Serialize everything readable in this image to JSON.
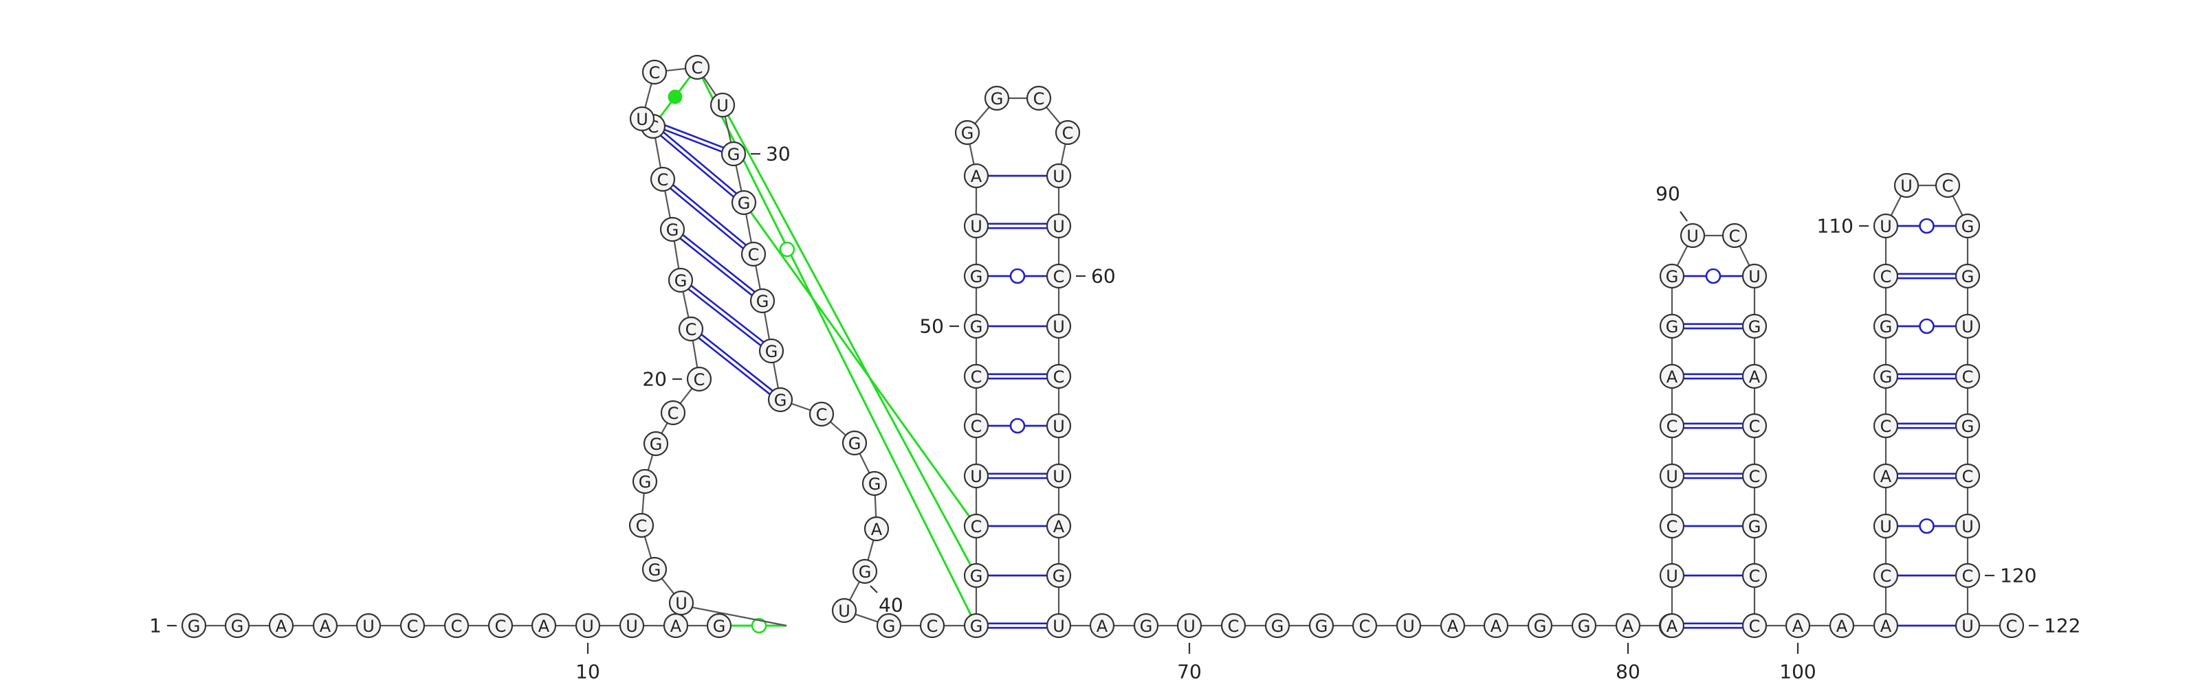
{
  "diagram": {
    "type": "rna-secondary-structure",
    "sequence_length": 122,
    "colors": {
      "backbone": "#555555",
      "canonical_pair": "#2020c8",
      "gu_pair": "#2020c8",
      "pseudoknot": "#22dd22"
    },
    "bases": [
      "G",
      "G",
      "A",
      "A",
      "U",
      "C",
      "C",
      "C",
      "A",
      "U",
      "U",
      "A",
      "G",
      "U",
      "G",
      "C",
      "G",
      "G",
      "C",
      "C",
      "C",
      "G",
      "G",
      "C",
      "C",
      "U",
      "C",
      "C",
      "U",
      "G",
      "G",
      "C",
      "G",
      "G",
      "G",
      "C",
      "G",
      "G",
      "A",
      "G",
      "U",
      "G",
      "C",
      "G",
      "G",
      "C",
      "U",
      "C",
      "C",
      "G",
      "G",
      "U",
      "A",
      "G",
      "G",
      "C",
      "C",
      "U",
      "U",
      "C",
      "U",
      "C",
      "U",
      "U",
      "A",
      "G",
      "U",
      "A",
      "G",
      "U",
      "C",
      "G",
      "G",
      "C",
      "U",
      "A",
      "A",
      "G",
      "G",
      "A",
      "C",
      "A",
      "U",
      "C",
      "U",
      "C",
      "A",
      "G",
      "G",
      "U",
      "C",
      "U",
      "G",
      "A",
      "C",
      "C",
      "G",
      "C",
      "C",
      "A",
      "A",
      "A",
      "C",
      "U",
      "A",
      "C",
      "G",
      "G",
      "C",
      "U",
      "U",
      "C",
      "G",
      "G",
      "U",
      "C",
      "G",
      "C",
      "U",
      "C",
      "U",
      "C"
    ],
    "labels": [
      {
        "text": "1",
        "nt": 1
      },
      {
        "text": "10",
        "nt": 10
      },
      {
        "text": "20",
        "nt": 20
      },
      {
        "text": "30",
        "nt": 30
      },
      {
        "text": "40",
        "nt": 40
      },
      {
        "text": "50",
        "nt": 50
      },
      {
        "text": "60",
        "nt": 60
      },
      {
        "text": "70",
        "nt": 70
      },
      {
        "text": "80",
        "nt": 80
      },
      {
        "text": "90",
        "nt": 90
      },
      {
        "text": "100",
        "nt": 100
      },
      {
        "text": "110",
        "nt": 110
      },
      {
        "text": "120",
        "nt": 120
      },
      {
        "text": "122",
        "nt": 122
      }
    ]
  }
}
